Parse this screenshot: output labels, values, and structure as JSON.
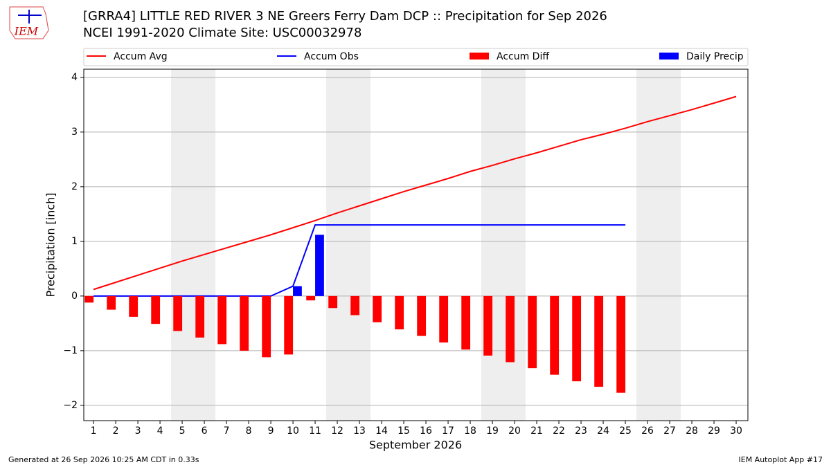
{
  "chart_data": {
    "type": "bar",
    "logo_text": "IEM",
    "title": "[GRRA4] LITTLE RED RIVER 3 NE Greers Ferry Dam DCP :: Precipitation for Sep 2026",
    "subtitle": "NCEI 1991-2020 Climate Site: USC00032978",
    "xlabel": "September 2026",
    "ylabel": "Precipitation [inch]",
    "x": [
      1,
      2,
      3,
      4,
      5,
      6,
      7,
      8,
      9,
      10,
      11,
      12,
      13,
      14,
      15,
      16,
      17,
      18,
      19,
      20,
      21,
      22,
      23,
      24,
      25,
      26,
      27,
      28,
      29,
      30
    ],
    "xlim": [
      0.56,
      30.53
    ],
    "xticks": [
      1,
      2,
      3,
      4,
      5,
      6,
      7,
      8,
      9,
      10,
      11,
      12,
      13,
      14,
      15,
      16,
      17,
      18,
      19,
      20,
      21,
      22,
      23,
      24,
      25,
      26,
      27,
      28,
      29,
      30
    ],
    "ylim": [
      -2.28,
      4.15
    ],
    "yticks": [
      {
        "value": -2,
        "label": "−2"
      },
      {
        "value": -1,
        "label": "−1"
      },
      0,
      1,
      2,
      3,
      4
    ],
    "grid": true,
    "shaded_spans": [
      [
        4.5,
        6.5
      ],
      [
        11.5,
        13.5
      ],
      [
        18.5,
        20.5
      ],
      [
        25.5,
        27.5
      ]
    ],
    "shade_color": "#eeeeee",
    "series": [
      {
        "name": "Accum Avg",
        "type": "line",
        "color": "#ff0000",
        "values": [
          0.12,
          0.25,
          0.38,
          0.51,
          0.64,
          0.76,
          0.88,
          1.0,
          1.12,
          1.25,
          1.38,
          1.52,
          1.65,
          1.78,
          1.91,
          2.03,
          2.15,
          2.28,
          2.39,
          2.51,
          2.62,
          2.74,
          2.86,
          2.96,
          3.07,
          3.19,
          3.3,
          3.41,
          3.53,
          3.65
        ]
      },
      {
        "name": "Accum Obs",
        "type": "line",
        "color": "#0000ff",
        "values": [
          0,
          0,
          0,
          0,
          0,
          0,
          0,
          0,
          0,
          0.18,
          1.3,
          1.3,
          1.3,
          1.3,
          1.3,
          1.3,
          1.3,
          1.3,
          1.3,
          1.3,
          1.3,
          1.3,
          1.3,
          1.3,
          1.3,
          null,
          null,
          null,
          null,
          null
        ]
      },
      {
        "name": "Accum Diff",
        "type": "bar",
        "color": "#ff0000",
        "values": [
          -0.12,
          -0.25,
          -0.38,
          -0.51,
          -0.64,
          -0.76,
          -0.88,
          -1.0,
          -1.12,
          -1.07,
          -0.08,
          -0.22,
          -0.35,
          -0.48,
          -0.61,
          -0.73,
          -0.85,
          -0.98,
          -1.09,
          -1.21,
          -1.32,
          -1.44,
          -1.56,
          -1.66,
          -1.77,
          null,
          null,
          null,
          null,
          null
        ]
      },
      {
        "name": "Daily Precip",
        "type": "bar",
        "color": "#0000ff",
        "values": [
          0,
          0,
          0,
          0,
          0,
          0,
          0,
          0,
          0,
          0.18,
          1.12,
          0,
          0,
          0,
          0,
          0,
          0,
          0,
          0,
          0,
          0,
          0,
          0,
          0,
          0,
          null,
          null,
          null,
          null,
          null
        ]
      }
    ],
    "footer_left": "Generated at 26 Sep 2026 10:25 AM CDT in 0.33s",
    "footer_right": "IEM Autoplot App #17"
  }
}
